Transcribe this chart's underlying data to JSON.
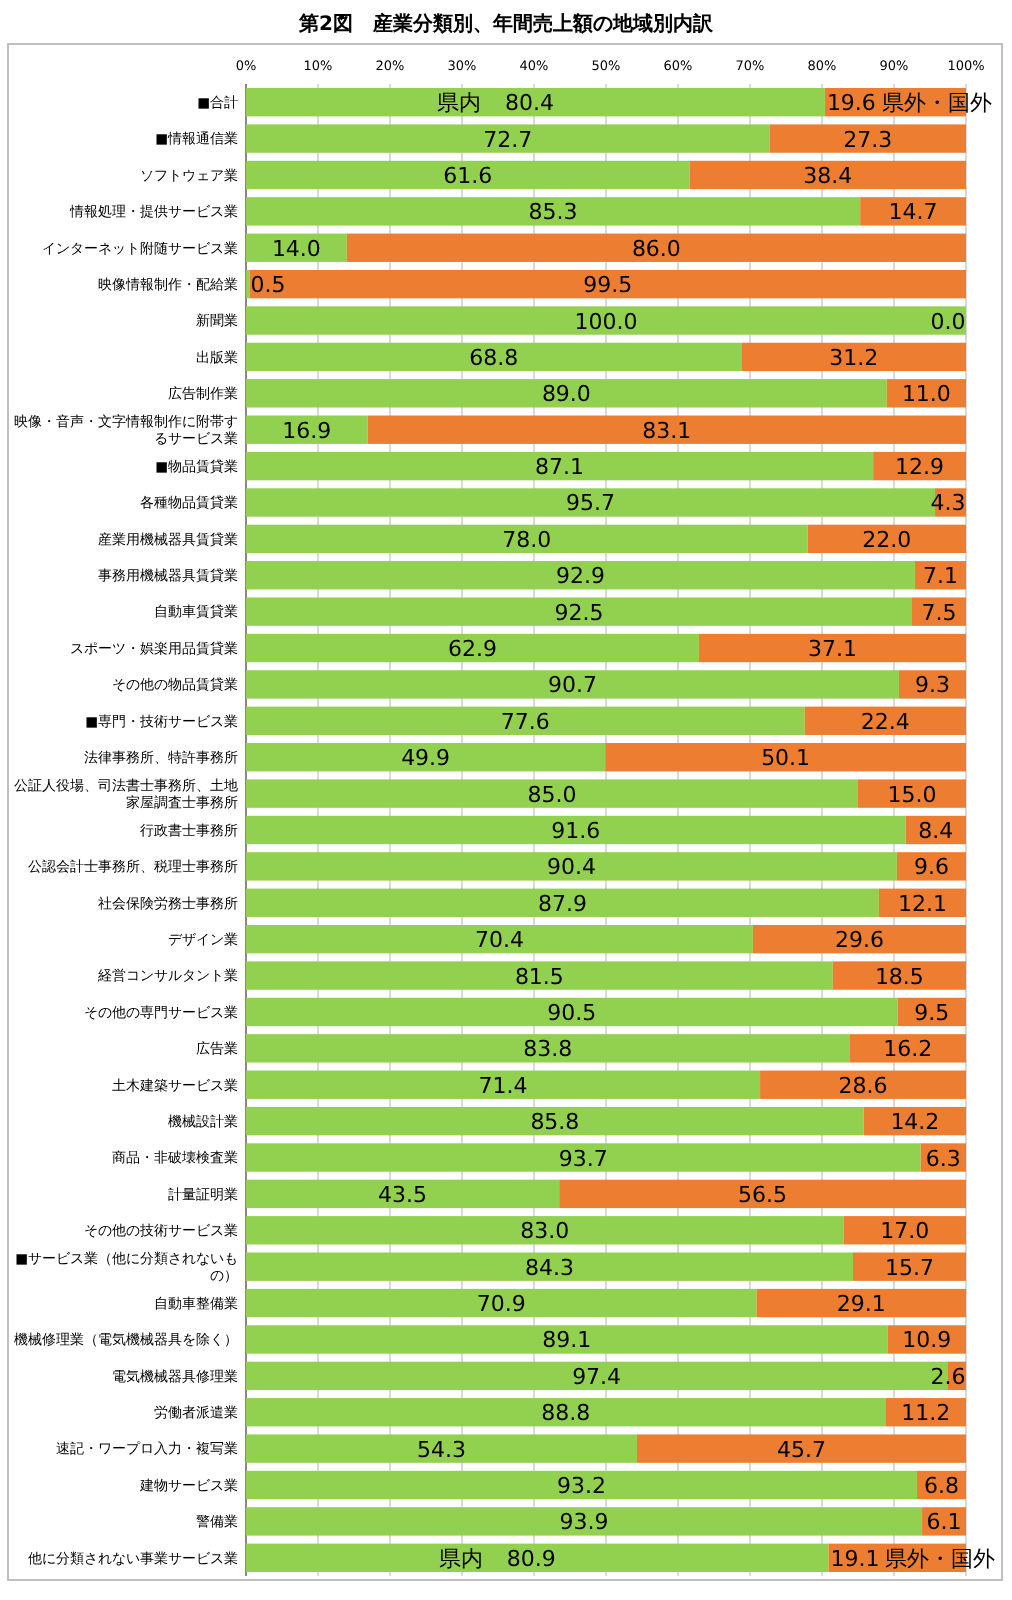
{
  "chart_data": {
    "type": "bar",
    "orientation": "horizontal",
    "stacked": true,
    "title": "第2図　産業分類別、年間売上額の地域別内訳",
    "categories": [
      "■合計",
      "■情報通信業",
      "ソフトウェア業",
      "情報処理・提供サービス業",
      "インターネット附随サービス業",
      "映像情報制作・配給業",
      "新聞業",
      "出版業",
      "広告制作業",
      "映像・音声・文字情報制作に附帯するサービス業",
      "■物品賃貸業",
      "各種物品賃貸業",
      "産業用機械器具賃貸業",
      "事務用機械器具賃貸業",
      "自動車賃貸業",
      "スポーツ・娯楽用品賃貸業",
      "その他の物品賃貸業",
      "■専門・技術サービス業",
      "法律事務所、特許事務所",
      "公証人役場、司法書士事務所、土地家屋調査士事務所",
      "行政書士事務所",
      "公認会計士事務所、税理士事務所",
      "社会保険労務士事務所",
      "デザイン業",
      "経営コンサルタント業",
      "その他の専門サービス業",
      "広告業",
      "土木建築サービス業",
      "機械設計業",
      "商品・非破壊検査業",
      "計量証明業",
      "その他の技術サービス業",
      "■サービス業（他に分類されないもの）",
      "自動車整備業",
      "機械修理業（電気機械器具を除く）",
      "電気機械器具修理業",
      "労働者派遣業",
      "速記・ワープロ入力・複写業",
      "建物サービス業",
      "警備業",
      "他に分類されない事業サービス業"
    ],
    "series": [
      {
        "name": "県内",
        "color": "#92d050",
        "values": [
          80.4,
          72.7,
          61.6,
          85.3,
          14.0,
          0.5,
          100.0,
          68.8,
          89.0,
          16.9,
          87.1,
          95.7,
          78.0,
          92.9,
          92.5,
          62.9,
          90.7,
          77.6,
          49.9,
          85.0,
          91.6,
          90.4,
          87.9,
          70.4,
          81.5,
          90.5,
          83.8,
          71.4,
          85.8,
          93.7,
          43.5,
          83.0,
          84.3,
          70.9,
          89.1,
          97.4,
          88.8,
          54.3,
          93.2,
          93.9,
          80.9
        ],
        "value_labels": [
          "80.4",
          "72.7",
          "61.6",
          "85.3",
          "14.0",
          "0.5",
          "100.0",
          "68.8",
          "89.0",
          "16.9",
          "87.1",
          "95.7",
          "78.0",
          "92.9",
          "92.5",
          "62.9",
          "90.7",
          "77.6",
          "49.9",
          "85.0",
          "91.6",
          "90.4",
          "87.9",
          "70.4",
          "81.5",
          "90.5",
          "83.8",
          "71.4",
          "85.8",
          "93.7",
          "43.5",
          "83.0",
          "84.3",
          "70.9",
          "89.1",
          "97.4",
          "88.8",
          "54.3",
          "93.2",
          "93.9",
          "80.9"
        ]
      },
      {
        "name": "県外・国外",
        "color": "#ed7d31",
        "values": [
          19.6,
          27.3,
          38.4,
          14.7,
          86.0,
          99.5,
          0.0,
          31.2,
          11.0,
          83.1,
          12.9,
          4.3,
          22.0,
          7.1,
          7.5,
          37.1,
          9.3,
          22.4,
          50.1,
          15.0,
          8.4,
          9.6,
          12.1,
          29.6,
          18.5,
          9.5,
          16.2,
          28.6,
          14.2,
          6.3,
          56.5,
          17.0,
          15.7,
          29.1,
          10.9,
          2.6,
          11.2,
          45.7,
          6.8,
          6.1,
          19.1
        ],
        "value_labels": [
          "19.6",
          "27.3",
          "38.4",
          "14.7",
          "86.0",
          "99.5",
          "0.0",
          "31.2",
          "11.0",
          "83.1",
          "12.9",
          "4.3",
          "22.0",
          "7.1",
          "7.5",
          "37.1",
          "9.3",
          "22.4",
          "50.1",
          "15.0",
          "8.4",
          "9.6",
          "12.1",
          "29.6",
          "18.5",
          "9.5",
          "16.2",
          "28.6",
          "14.2",
          "6.3",
          "56.5",
          "17.0",
          "15.7",
          "29.1",
          "10.9",
          "2.6",
          "11.2",
          "45.7",
          "6.8",
          "6.1",
          "19.1"
        ]
      }
    ],
    "xlim": [
      0,
      100
    ],
    "xticks": [
      {
        "value": 0,
        "label": "0%"
      },
      {
        "value": 10,
        "label": "10%"
      },
      {
        "value": 20,
        "label": "20%"
      },
      {
        "value": 30,
        "label": "30%"
      },
      {
        "value": 40,
        "label": "40%"
      },
      {
        "value": 50,
        "label": "50%"
      },
      {
        "value": 60,
        "label": "60%"
      },
      {
        "value": 70,
        "label": "70%"
      },
      {
        "value": 80,
        "label": "80%"
      },
      {
        "value": 90,
        "label": "90%"
      },
      {
        "value": 100,
        "label": "100%"
      }
    ],
    "grid": "x"
  }
}
